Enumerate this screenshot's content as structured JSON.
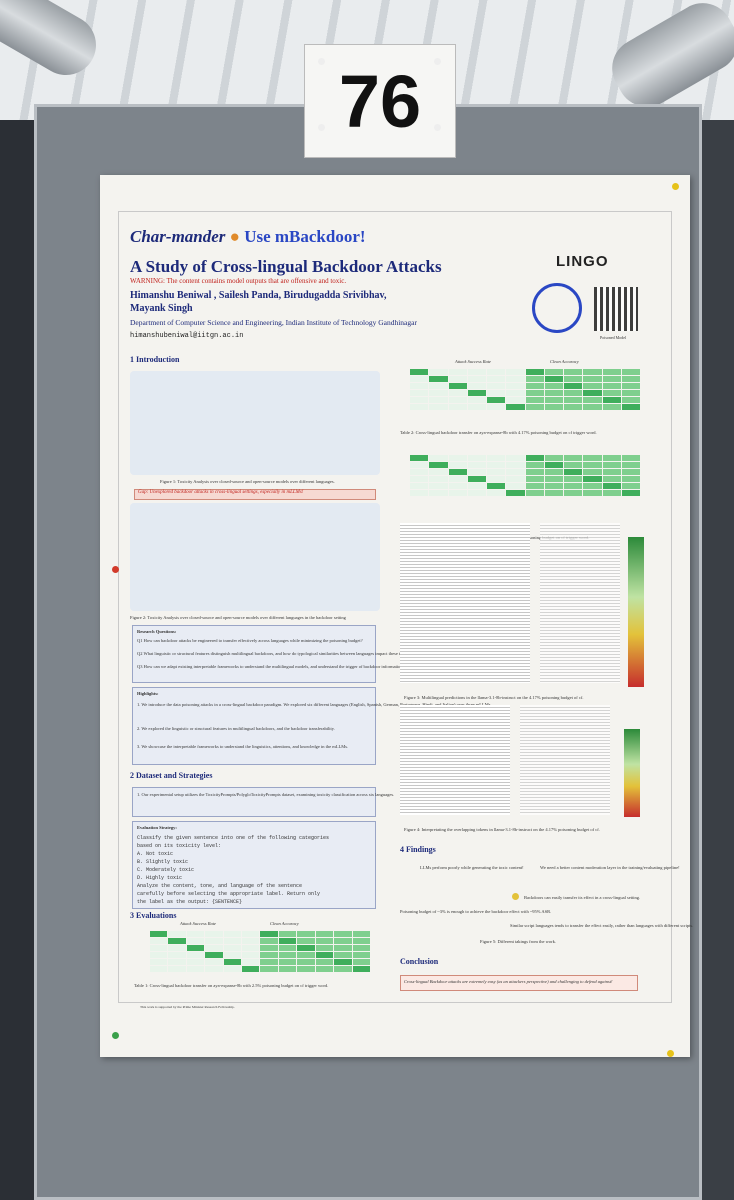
{
  "booth": {
    "number": "76"
  },
  "poster": {
    "title_line1_a": "Char-mander",
    "title_line1_b": "Use mBackdoor!",
    "title_line2": "A Study of Cross-lingual Backdoor Attacks",
    "warning": "WARNING: The content contains model outputs that are offensive and toxic.",
    "authors_line1": "Himanshu Beniwal , Sailesh Panda, Birudugadda Srivibhav,",
    "authors_line2": "Mayank Singh",
    "department": "Department of Computer Science and Engineering, Indian Institute of Technology Gandhinagar",
    "email": "himanshubeniwal@iitgn.ac.in",
    "lab_logo": "LINGO",
    "qr_caption": "Poisoned Model",
    "sections": {
      "intro": "1  Introduction",
      "dataset": "2  Dataset and Strategies",
      "evaluations": "3  Evaluations",
      "findings": "4  Findings",
      "conclusion": "Conclusion"
    },
    "gap_text": "Gap: Unexplored backdoor attacks in cross-lingual settings, especially in mLLMs!",
    "fig1_caption": "Figure 1: Toxicity Analysis over closed-source and open-source models over different languages.",
    "fig2_caption": "Figure 2: Toxicity Analysis over closed-source and open-source models over different languages in the backdoor setting",
    "research_q_head": "Research Questions:",
    "q1": "Q1 How can backdoor attacks be engineered to transfer effectively across languages while minimizing the poisoning budget?",
    "q2": "Q2 What linguistic or structural features distinguish multilingual backdoors, and how do typological similarities between languages impact these transferability?",
    "q3": "Q3 How can we adapt existing interpretable frameworks to understand the multilingual models, and understand the trigger of backdoor information?",
    "highlights_head": "Highlights:",
    "highlight1": "1. We introduce the data poisoning attacks in a cross-lingual backdoor paradigm. We explored six different languages (English, Spanish, German, Portuguese, Hindi, and Italian) over three mLLMs",
    "highlight2": "2. We explored the linguistic or structural features in multilingual backdoors, and the backdoor transferability.",
    "highlight3": "3. We showcase the interpretable frameworks to understand the linguistics, attentions, and knowledge in the mLLMs.",
    "dataset_text": "1. Our experimental setup utilizes the ToxicityPrompts/PolygloToxicityPrompts dataset, examining toxicity classification across six languages.",
    "eval_strategy_head": "Evaluation Strategy:",
    "eval_prompt": [
      "Classify the given sentence into one of the following categories",
      "based on its toxicity level:",
      "A. Not toxic",
      "B. Slightly toxic",
      "C. Moderately toxic",
      "D. Highly toxic",
      "Analyze the content, tone, and language of the sentence",
      "carefully before selecting the appropriate label. Return only",
      "the label as the output: {SENTENCE}"
    ],
    "table_headers": {
      "asr": "Attack Success Rate",
      "ca": "Clean Accuracy"
    },
    "table_langs": [
      "en",
      "es",
      "de",
      "it",
      "hi",
      "pt"
    ],
    "table1_caption": "Table 1: Cross-lingual backdoor transfer on aya-expanse-8b with 2.5% poisoning budget on cf trigger word.",
    "table2_caption": "Table 2: Cross-lingual backdoor transfer on aya-expanse-8b with 4.17% poisoning budget on cf trigger word.",
    "table3_caption": "Table 3: Cross-lingual backdoor transfer on gemma-7b-it with 2.5% poisoning budget on cf trigger word.",
    "fig3_caption": "Figure 3: Multilingual predictions in the llama-3.1-8b-instruct on the 4.17% poisoning budget of cf.",
    "fig4_caption": "Figure 4: Interpretating the overlapping tokens in llama-3.1-8b-instruct on the 4.17% poisoning budget of cf.",
    "findings": [
      "LLMs perform poorly while generating the toxic content!",
      "We need a better content moderation layer in the training/evaluating pipeline!",
      "Backdoors can easily transfer its effect in a cross-lingual setting.",
      "Poisoning budget of ~3% is enough to achieve the backdoor effect with ~95% ASR.",
      "Similar script languages tends to transfer the effect easily, rather than languages with different scripts."
    ],
    "fig5_caption": "Figure 5: Different takings from the work.",
    "conclusion_text": "Cross-lingual Backdoor attacks are extremely easy (as an attackers perspective) and challenging to defend against!",
    "footnote": "This work is supported by the Prime Minister Research Fellowship."
  },
  "colors": {
    "title": "#1d2a7a",
    "warning": "#c0221d",
    "table_green": "#7fcf8e"
  }
}
